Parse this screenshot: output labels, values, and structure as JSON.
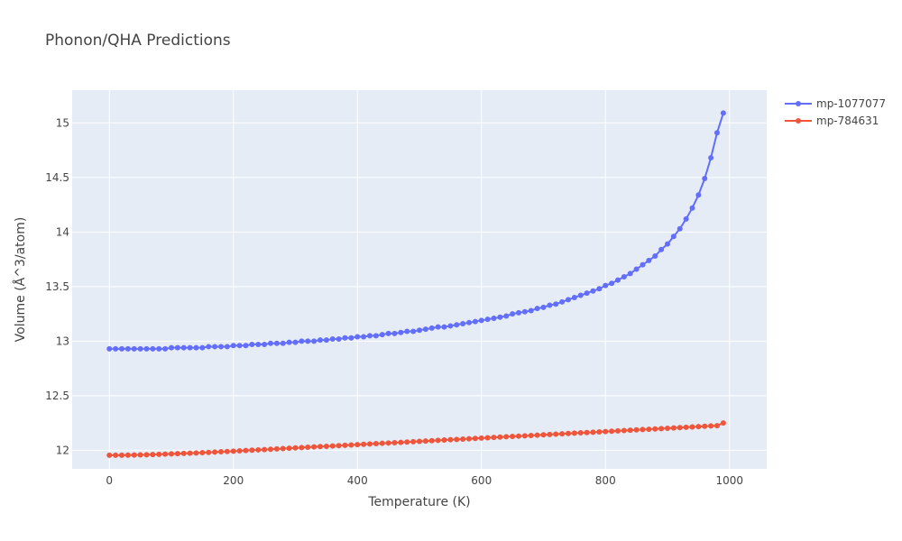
{
  "chart_data": {
    "type": "line",
    "title": "Phonon/QHA Predictions",
    "xlabel": "Temperature (K)",
    "ylabel": "Volume (Å^3/atom)",
    "xlim": [
      -60,
      1060
    ],
    "ylim": [
      11.83,
      15.3
    ],
    "x_ticks": [
      0,
      200,
      400,
      600,
      800,
      1000
    ],
    "y_ticks": [
      12,
      12.5,
      13,
      13.5,
      14,
      14.5,
      15
    ],
    "x_tick_labels": [
      "0",
      "200",
      "400",
      "600",
      "800",
      "1000"
    ],
    "y_tick_labels": [
      "12",
      "12.5",
      "13",
      "13.5",
      "14",
      "14.5",
      "15"
    ],
    "grid": true,
    "legend_position": "top-right",
    "marker_mode": "lines+markers",
    "background_color": "#e5ecf6",
    "series": [
      {
        "name": "mp-1077077",
        "color": "#636efa",
        "x": [
          0,
          10,
          20,
          30,
          40,
          50,
          60,
          70,
          80,
          90,
          100,
          110,
          120,
          130,
          140,
          150,
          160,
          170,
          180,
          190,
          200,
          210,
          220,
          230,
          240,
          250,
          260,
          270,
          280,
          290,
          300,
          310,
          320,
          330,
          340,
          350,
          360,
          370,
          380,
          390,
          400,
          410,
          420,
          430,
          440,
          450,
          460,
          470,
          480,
          490,
          500,
          510,
          520,
          530,
          540,
          550,
          560,
          570,
          580,
          590,
          600,
          610,
          620,
          630,
          640,
          650,
          660,
          670,
          680,
          690,
          700,
          710,
          720,
          730,
          740,
          750,
          760,
          770,
          780,
          790,
          800,
          810,
          820,
          830,
          840,
          850,
          860,
          870,
          880,
          890,
          900,
          910,
          920,
          930,
          940,
          950,
          960,
          970,
          980,
          990
        ],
        "values": [
          12.93,
          12.93,
          12.93,
          12.93,
          12.93,
          12.93,
          12.93,
          12.93,
          12.93,
          12.93,
          12.94,
          12.94,
          12.94,
          12.94,
          12.94,
          12.94,
          12.95,
          12.95,
          12.95,
          12.95,
          12.96,
          12.96,
          12.96,
          12.97,
          12.97,
          12.97,
          12.98,
          12.98,
          12.98,
          12.99,
          12.99,
          13.0,
          13.0,
          13.0,
          13.01,
          13.01,
          13.02,
          13.02,
          13.03,
          13.03,
          13.04,
          13.04,
          13.05,
          13.05,
          13.06,
          13.07,
          13.07,
          13.08,
          13.09,
          13.09,
          13.1,
          13.11,
          13.12,
          13.13,
          13.13,
          13.14,
          13.15,
          13.16,
          13.17,
          13.18,
          13.19,
          13.2,
          13.21,
          13.22,
          13.23,
          13.25,
          13.26,
          13.27,
          13.28,
          13.3,
          13.31,
          13.33,
          13.34,
          13.36,
          13.38,
          13.4,
          13.42,
          13.44,
          13.46,
          13.48,
          13.51,
          13.53,
          13.56,
          13.59,
          13.62,
          13.66,
          13.7,
          13.74,
          13.78,
          13.84,
          13.89,
          13.96,
          14.03,
          14.12,
          14.22,
          14.34,
          14.49,
          14.68,
          14.91,
          15.09
        ]
      },
      {
        "name": "mp-784631",
        "color": "#ef553b",
        "x": [
          0,
          10,
          20,
          30,
          40,
          50,
          60,
          70,
          80,
          90,
          100,
          110,
          120,
          130,
          140,
          150,
          160,
          170,
          180,
          190,
          200,
          210,
          220,
          230,
          240,
          250,
          260,
          270,
          280,
          290,
          300,
          310,
          320,
          330,
          340,
          350,
          360,
          370,
          380,
          390,
          400,
          410,
          420,
          430,
          440,
          450,
          460,
          470,
          480,
          490,
          500,
          510,
          520,
          530,
          540,
          550,
          560,
          570,
          580,
          590,
          600,
          610,
          620,
          630,
          640,
          650,
          660,
          670,
          680,
          690,
          700,
          710,
          720,
          730,
          740,
          750,
          760,
          770,
          780,
          790,
          800,
          810,
          820,
          830,
          840,
          850,
          860,
          870,
          880,
          890,
          900,
          910,
          920,
          930,
          940,
          950,
          960,
          970,
          980,
          990
        ],
        "values": [
          11.955,
          11.955,
          11.955,
          11.956,
          11.957,
          11.958,
          11.959,
          11.961,
          11.963,
          11.965,
          11.967,
          11.969,
          11.971,
          11.974,
          11.976,
          11.979,
          11.981,
          11.984,
          11.987,
          11.989,
          11.992,
          11.995,
          11.998,
          12.001,
          12.004,
          12.007,
          12.01,
          12.013,
          12.016,
          12.019,
          12.022,
          12.025,
          12.028,
          12.031,
          12.034,
          12.037,
          12.04,
          12.043,
          12.046,
          12.049,
          12.052,
          12.055,
          12.058,
          12.061,
          12.064,
          12.067,
          12.07,
          12.073,
          12.076,
          12.079,
          12.082,
          12.085,
          12.088,
          12.091,
          12.094,
          12.097,
          12.1,
          12.103,
          12.106,
          12.109,
          12.112,
          12.115,
          12.118,
          12.121,
          12.124,
          12.127,
          12.13,
          12.133,
          12.136,
          12.139,
          12.142,
          12.145,
          12.148,
          12.151,
          12.154,
          12.157,
          12.16,
          12.163,
          12.166,
          12.169,
          12.172,
          12.175,
          12.178,
          12.181,
          12.184,
          12.187,
          12.19,
          12.193,
          12.196,
          12.199,
          12.202,
          12.205,
          12.208,
          12.211,
          12.214,
          12.217,
          12.22,
          12.223,
          12.226,
          12.25
        ]
      }
    ]
  }
}
